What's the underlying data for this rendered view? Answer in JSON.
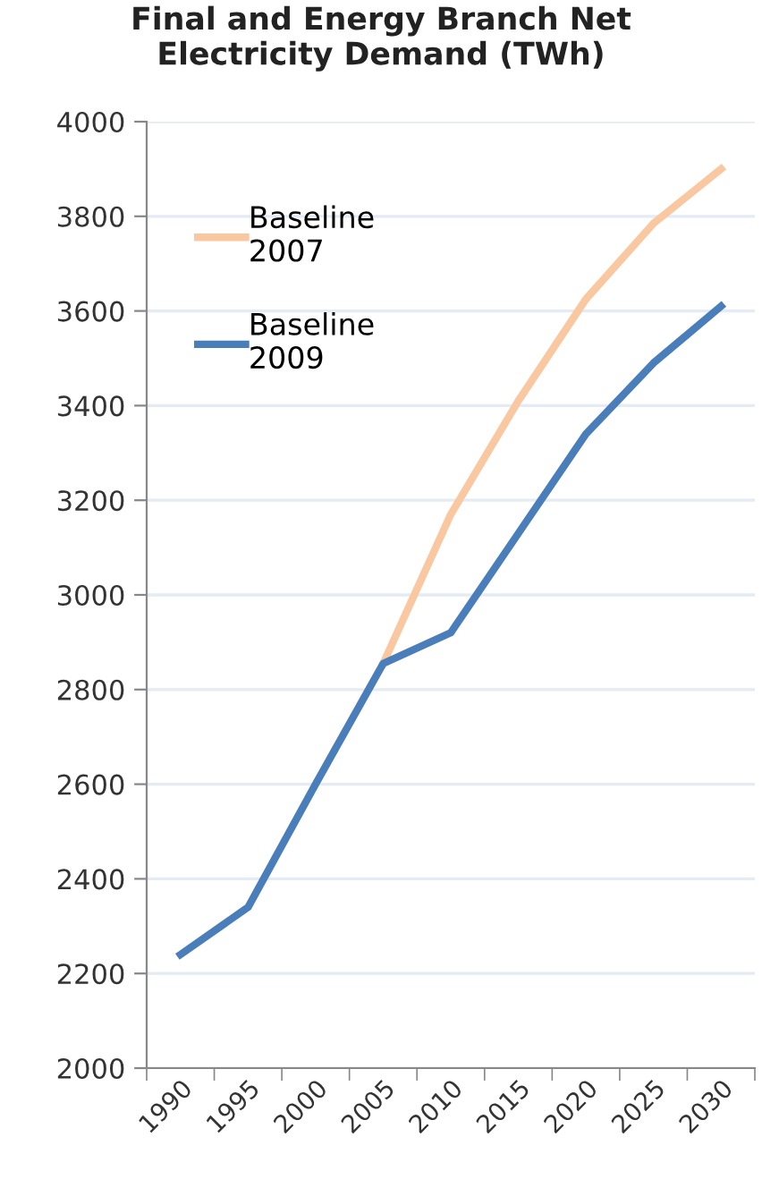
{
  "chart_data": {
    "type": "line",
    "title": "Final and Energy Branch Net\nElectricity Demand (TWh)",
    "categories": [
      "1990",
      "1995",
      "2000",
      "2005",
      "2010",
      "2015",
      "2020",
      "2025",
      "2030"
    ],
    "series": [
      {
        "name": "Baseline\n2007",
        "color": "#fac8a0",
        "values": [
          null,
          null,
          null,
          2855,
          3170,
          3410,
          3625,
          3785,
          3900
        ]
      },
      {
        "name": "Baseline\n2009",
        "color": "#4a7ebb",
        "values": [
          2240,
          2340,
          2600,
          2855,
          2920,
          3130,
          3340,
          3490,
          3610
        ]
      }
    ],
    "ylim": [
      2000,
      4000
    ],
    "yticks": [
      2000,
      2200,
      2400,
      2600,
      2800,
      3000,
      3200,
      3400,
      3600,
      3800,
      4000
    ],
    "grid": "y",
    "legend": "top left",
    "marker": "none",
    "line_style": "solid"
  }
}
